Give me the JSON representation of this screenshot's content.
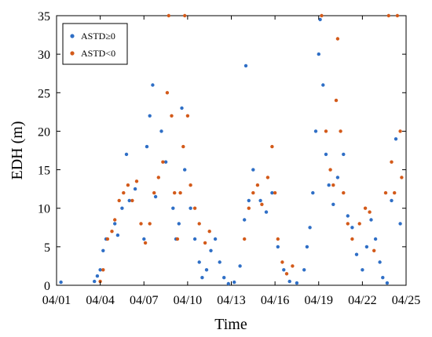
{
  "chart_data": {
    "type": "scatter",
    "xlabel": "Time",
    "ylabel": "EDH (m)",
    "xlim": [
      0,
      24
    ],
    "ylim": [
      0,
      35
    ],
    "xticks": [
      0,
      3,
      6,
      9,
      12,
      15,
      18,
      21,
      24
    ],
    "xtick_labels": [
      "04/01",
      "04/04",
      "04/07",
      "04/10",
      "04/13",
      "04/16",
      "04/19",
      "04/22",
      "04/25"
    ],
    "yticks": [
      0,
      5,
      10,
      15,
      20,
      25,
      30,
      35
    ],
    "ytick_labels": [
      "0",
      "5",
      "10",
      "15",
      "20",
      "25",
      "30",
      "35"
    ],
    "grid": false,
    "legend_position": "top-left",
    "series": [
      {
        "name": "ASTD≥0",
        "color": "#2f6fc6",
        "points": [
          [
            0.3,
            0.4
          ],
          [
            2.6,
            0.5
          ],
          [
            2.8,
            1.2
          ],
          [
            3.0,
            2.0
          ],
          [
            3.2,
            4.5
          ],
          [
            3.4,
            6.0
          ],
          [
            4.0,
            8.0
          ],
          [
            4.2,
            6.5
          ],
          [
            4.5,
            10.0
          ],
          [
            4.8,
            17.0
          ],
          [
            5.0,
            11.0
          ],
          [
            5.4,
            12.5
          ],
          [
            6.0,
            6.0
          ],
          [
            6.2,
            18.0
          ],
          [
            6.4,
            22.0
          ],
          [
            6.6,
            26.0
          ],
          [
            6.8,
            11.5
          ],
          [
            7.2,
            20.0
          ],
          [
            7.5,
            16.0
          ],
          [
            8.0,
            10.0
          ],
          [
            8.2,
            6.0
          ],
          [
            8.4,
            8.0
          ],
          [
            8.6,
            23.0
          ],
          [
            8.8,
            15.0
          ],
          [
            9.2,
            10.0
          ],
          [
            9.5,
            6.0
          ],
          [
            9.8,
            3.0
          ],
          [
            10.0,
            1.0
          ],
          [
            10.3,
            2.0
          ],
          [
            10.6,
            4.5
          ],
          [
            10.9,
            6.0
          ],
          [
            11.2,
            3.0
          ],
          [
            11.5,
            1.0
          ],
          [
            11.8,
            0.2
          ],
          [
            12.2,
            0.4
          ],
          [
            12.6,
            2.5
          ],
          [
            12.9,
            8.5
          ],
          [
            13.0,
            28.5
          ],
          [
            13.2,
            11.0
          ],
          [
            13.5,
            15.0
          ],
          [
            14.0,
            11.0
          ],
          [
            14.4,
            9.5
          ],
          [
            14.8,
            12.0
          ],
          [
            15.2,
            5.0
          ],
          [
            15.6,
            2.0
          ],
          [
            16.0,
            0.5
          ],
          [
            16.5,
            0.3
          ],
          [
            17.0,
            2.0
          ],
          [
            17.2,
            5.0
          ],
          [
            17.4,
            7.5
          ],
          [
            17.6,
            12.0
          ],
          [
            17.8,
            20.0
          ],
          [
            18.0,
            30.0
          ],
          [
            18.1,
            34.5
          ],
          [
            18.3,
            26.0
          ],
          [
            18.5,
            17.0
          ],
          [
            18.7,
            13.0
          ],
          [
            19.0,
            10.5
          ],
          [
            19.3,
            14.0
          ],
          [
            19.7,
            17.0
          ],
          [
            20.0,
            9.0
          ],
          [
            20.3,
            7.5
          ],
          [
            20.6,
            4.0
          ],
          [
            21.0,
            2.0
          ],
          [
            21.3,
            5.0
          ],
          [
            21.6,
            8.5
          ],
          [
            21.9,
            6.0
          ],
          [
            22.2,
            3.0
          ],
          [
            22.4,
            1.0
          ],
          [
            22.7,
            0.3
          ],
          [
            23.0,
            11.0
          ],
          [
            23.3,
            19.0
          ],
          [
            23.6,
            8.0
          ]
        ]
      },
      {
        "name": "ASTD<0",
        "color": "#d35a1a",
        "points": [
          [
            3.0,
            0.5
          ],
          [
            3.2,
            2.0
          ],
          [
            3.5,
            6.0
          ],
          [
            3.8,
            7.0
          ],
          [
            4.0,
            8.5
          ],
          [
            4.3,
            11.0
          ],
          [
            4.6,
            12.0
          ],
          [
            4.9,
            13.0
          ],
          [
            5.2,
            11.0
          ],
          [
            5.5,
            13.5
          ],
          [
            5.8,
            8.0
          ],
          [
            6.1,
            5.5
          ],
          [
            6.4,
            8.0
          ],
          [
            6.7,
            12.0
          ],
          [
            7.0,
            14.0
          ],
          [
            7.3,
            16.0
          ],
          [
            7.6,
            25.0
          ],
          [
            7.7,
            35.0
          ],
          [
            7.9,
            22.0
          ],
          [
            8.1,
            12.0
          ],
          [
            8.3,
            6.0
          ],
          [
            8.5,
            12.0
          ],
          [
            8.7,
            18.0
          ],
          [
            8.8,
            35.0
          ],
          [
            9.0,
            22.0
          ],
          [
            9.2,
            13.0
          ],
          [
            9.5,
            10.0
          ],
          [
            9.8,
            8.0
          ],
          [
            10.2,
            5.5
          ],
          [
            10.5,
            7.0
          ],
          [
            12.9,
            6.0
          ],
          [
            13.2,
            10.0
          ],
          [
            13.5,
            12.0
          ],
          [
            13.8,
            13.0
          ],
          [
            14.1,
            10.5
          ],
          [
            14.5,
            14.0
          ],
          [
            14.8,
            18.0
          ],
          [
            15.0,
            12.0
          ],
          [
            15.2,
            6.0
          ],
          [
            15.5,
            3.0
          ],
          [
            15.8,
            1.5
          ],
          [
            16.2,
            2.5
          ],
          [
            18.2,
            35.0
          ],
          [
            18.5,
            20.0
          ],
          [
            18.8,
            15.0
          ],
          [
            19.0,
            13.0
          ],
          [
            19.2,
            24.0
          ],
          [
            19.3,
            32.0
          ],
          [
            19.5,
            20.0
          ],
          [
            19.7,
            12.0
          ],
          [
            20.0,
            8.0
          ],
          [
            20.3,
            6.0
          ],
          [
            20.8,
            8.0
          ],
          [
            21.2,
            10.0
          ],
          [
            21.5,
            9.5
          ],
          [
            21.8,
            4.5
          ],
          [
            22.6,
            12.0
          ],
          [
            22.8,
            35.0
          ],
          [
            23.0,
            16.0
          ],
          [
            23.2,
            12.0
          ],
          [
            23.4,
            35.0
          ],
          [
            23.6,
            20.0
          ],
          [
            23.7,
            14.0
          ]
        ]
      }
    ]
  }
}
